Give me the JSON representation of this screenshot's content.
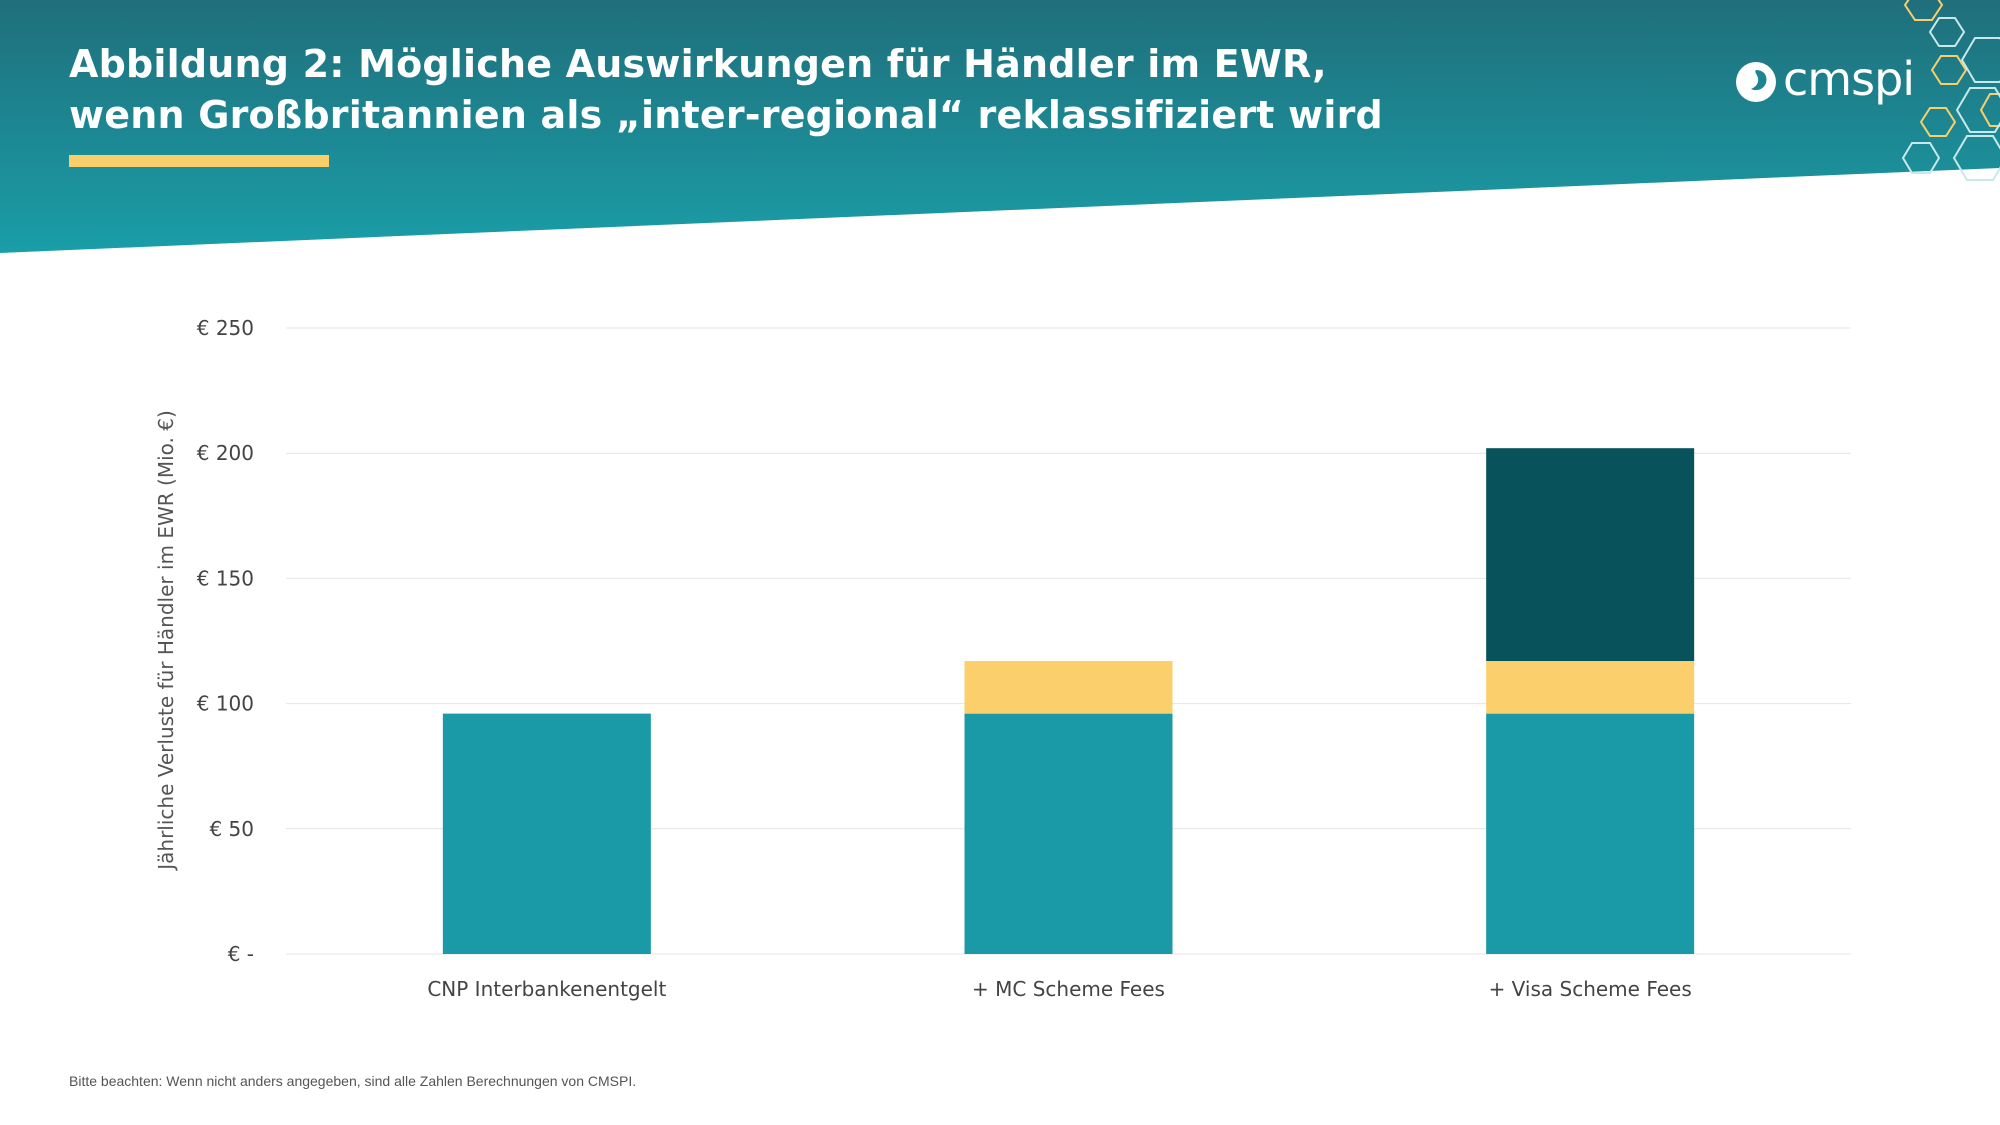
{
  "header": {
    "title_line1": "Abbildung 2: Mögliche Auswirkungen für Händler im EWR,",
    "title_line2": "wenn Großbritannien als „inter-regional“ reklassifiziert wird",
    "logo_text": "cmspi",
    "logo_icon": "cmspi-logo-icon"
  },
  "colors": {
    "banner_top": "#1d6e7c",
    "banner_bottom": "#1a9aa6",
    "accent": "#f9cf6c",
    "series_teal": "#1a9aa6",
    "series_yellow": "#fbcf6b",
    "series_dark": "#07525b"
  },
  "chart_data": {
    "type": "bar",
    "stacked": true,
    "categories": [
      "CNP Interbankenentgelt",
      "+ MC Scheme Fees",
      "+ Visa Scheme Fees"
    ],
    "series": [
      {
        "values": [
          96,
          96,
          96
        ],
        "color": "#1a9aa6"
      },
      {
        "values": [
          0,
          21,
          21
        ],
        "color": "#fbcf6b"
      },
      {
        "values": [
          0,
          0,
          85
        ],
        "color": "#07525b"
      }
    ],
    "ylabel": "Jährliche Verluste für Händler im EWR (Mio. €)",
    "ylim": [
      0,
      250
    ],
    "yticks": [
      0,
      50,
      100,
      150,
      200,
      250
    ],
    "ytick_labels": [
      "€ -",
      "€ 50",
      "€ 100",
      "€ 150",
      "€ 200",
      "€ 250"
    ],
    "grid": true,
    "legend": "none"
  },
  "footnote": "Bitte beachten: Wenn nicht anders angegeben, sind alle Zahlen Berechnungen von CMSPI."
}
